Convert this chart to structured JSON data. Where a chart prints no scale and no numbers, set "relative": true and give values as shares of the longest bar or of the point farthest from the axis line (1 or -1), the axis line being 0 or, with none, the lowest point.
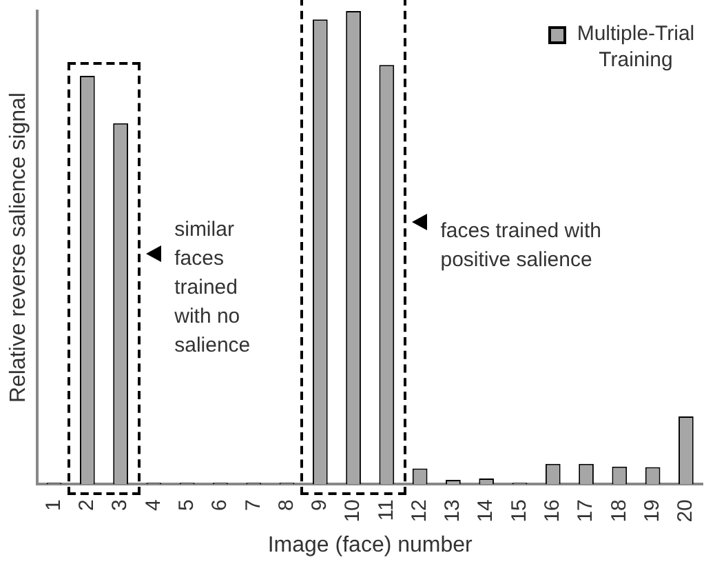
{
  "chart_data": {
    "type": "bar",
    "relative": true,
    "xlabel": "Image (face) number",
    "ylabel": "Relative reverse salience signal",
    "categories": [
      "1",
      "2",
      "3",
      "4",
      "5",
      "6",
      "7",
      "8",
      "9",
      "10",
      "11",
      "12",
      "13",
      "14",
      "15",
      "16",
      "17",
      "18",
      "19",
      "20"
    ],
    "series": [
      {
        "name": "Multiple-Trial Training",
        "color": "#a6a6a6",
        "values": [
          0.003,
          0.863,
          0.763,
          0.003,
          0.003,
          0.003,
          0.003,
          0.003,
          0.982,
          1,
          0.886,
          0.033,
          0.009,
          0.012,
          0.003,
          0.043,
          0.043,
          0.037,
          0.036,
          0.143
        ]
      }
    ],
    "annotations": [
      "similar faces trained with  no salience",
      "faces trained with positive salience"
    ],
    "legend": "top right",
    "grid": false
  }
}
